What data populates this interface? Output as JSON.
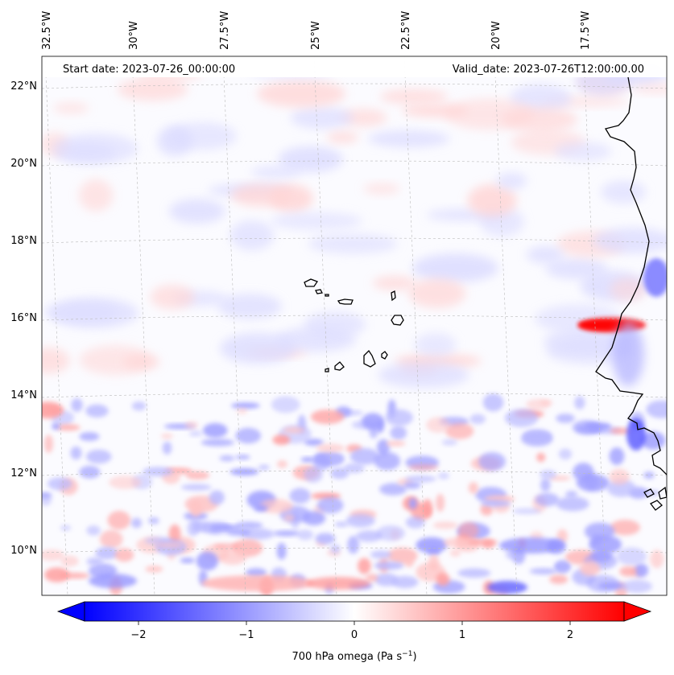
{
  "header": {
    "start_date": "Start date: 2023-07-26_00:00:00",
    "valid_date": "Valid_date: 2023-07-26T12:00:00.00"
  },
  "map": {
    "lon_labels": [
      "32.5°W",
      "30°W",
      "27.5°W",
      "25°W",
      "22.5°W",
      "20°W",
      "17.5°W"
    ],
    "lat_labels": [
      "22°N",
      "20°N",
      "18°N",
      "16°N",
      "14°N",
      "12°N",
      "10°N"
    ],
    "gridlines": true,
    "coastline_color": "#000000"
  },
  "colorbar": {
    "ticks": [
      "−2",
      "−1",
      "0",
      "1",
      "2"
    ],
    "label": "700 hPa omega (Pa s",
    "label_sup": "−1",
    "label_end": ")",
    "min_color": "#0000ff",
    "mid_color": "#ffffff",
    "max_color": "#ff0000",
    "extend": "both"
  }
}
